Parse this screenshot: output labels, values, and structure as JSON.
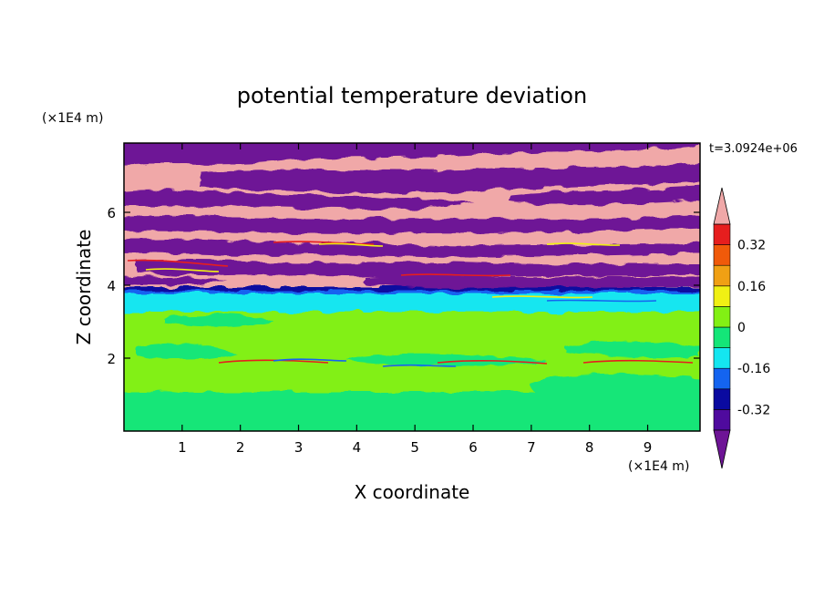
{
  "chart_data": {
    "type": "heatmap",
    "title": "potential temperature deviation",
    "xlabel": "X coordinate",
    "ylabel": "Z coordinate",
    "x_unit": "(×1E4 m)",
    "y_unit": "(×1E4 m)",
    "time_label": "t=3.0924e+06",
    "xlim": [
      0,
      9.9
    ],
    "ylim": [
      0,
      7.9
    ],
    "x_ticks": [
      1,
      2,
      3,
      4,
      5,
      6,
      7,
      8,
      9
    ],
    "y_ticks": [
      2,
      4,
      6
    ],
    "colorbar": {
      "levels": [
        -0.4,
        -0.32,
        -0.24,
        -0.16,
        -0.08,
        0,
        0.08,
        0.16,
        0.24,
        0.32,
        0.4
      ],
      "tick_values": [
        0.32,
        0.16,
        0,
        -0.16,
        -0.32
      ],
      "tick_labels": [
        "0.32",
        "0.16",
        "0",
        "-0.16",
        "-0.32"
      ],
      "colors_bottom_to_top": [
        "#4f0a9e",
        "#0a0aa0",
        "#1464f0",
        "#14e6f0",
        "#14e678",
        "#82f014",
        "#f0f014",
        "#f0a014",
        "#f05a0a",
        "#e61e1e"
      ],
      "under_color": "#6e1496",
      "over_color": "#f0a8a8"
    }
  }
}
